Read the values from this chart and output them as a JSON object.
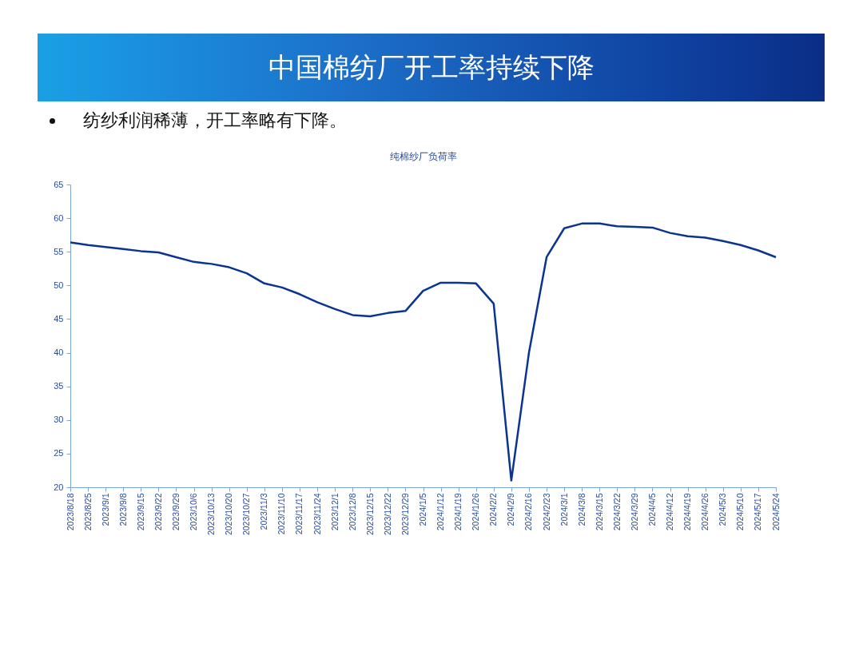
{
  "chart_data": {
    "type": "line",
    "title": "中国棉纺厂开工率持续下降",
    "subtitle": "纯棉纱厂负荷率",
    "annotations": [
      "纺纱利润稀薄，开工率略有下降。"
    ],
    "categories": [
      "2023/8/18",
      "2023/8/25",
      "2023/9/1",
      "2023/9/8",
      "2023/9/15",
      "2023/9/22",
      "2023/9/29",
      "2023/10/6",
      "2023/10/13",
      "2023/10/20",
      "2023/10/27",
      "2023/11/3",
      "2023/11/10",
      "2023/11/17",
      "2023/11/24",
      "2023/12/1",
      "2023/12/8",
      "2023/12/15",
      "2023/12/22",
      "2023/12/29",
      "2024/1/5",
      "2024/1/12",
      "2024/1/19",
      "2024/1/26",
      "2024/2/2",
      "2024/2/9",
      "2024/2/16",
      "2024/2/23",
      "2024/3/1",
      "2024/3/8",
      "2024/3/15",
      "2024/3/22",
      "2024/3/29",
      "2024/4/5",
      "2024/4/12",
      "2024/4/19",
      "2024/4/26",
      "2024/5/3",
      "2024/5/10",
      "2024/5/17",
      "2024/5/24"
    ],
    "series": [
      {
        "color": "#0a3491",
        "values": [
          56.4,
          56.0,
          55.7,
          55.4,
          55.1,
          54.9,
          54.2,
          53.5,
          53.2,
          52.7,
          51.8,
          50.3,
          49.7,
          48.7,
          47.5,
          46.5,
          45.6,
          45.4,
          45.9,
          46.2,
          49.2,
          50.4,
          50.4,
          50.3,
          47.3,
          21,
          40,
          54.2,
          58.5,
          59.2,
          59.2,
          58.8,
          58.7,
          58.6,
          57.8,
          57.3,
          57.1,
          56.6,
          56.0,
          55.2,
          54.2
        ]
      }
    ],
    "ylim": [
      20,
      65
    ],
    "yticks": [
      20,
      25,
      30,
      35,
      40,
      45,
      50,
      55,
      60,
      65
    ],
    "grid": false,
    "marker": "none",
    "line_style": "solid"
  }
}
